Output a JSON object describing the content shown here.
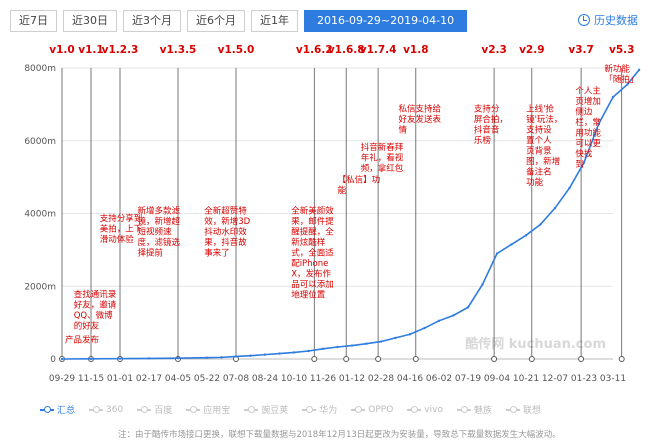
{
  "tabs": [
    "近7日",
    "近30日",
    "近3个月",
    "近6个月",
    "近1年",
    "2016-09-29~2019-04-10"
  ],
  "history_label": "历史数据",
  "legend": [
    "汇总",
    "360",
    "百度",
    "应用宝",
    "豌豆荚",
    "华为",
    "OPPO",
    "vivo",
    "魅族",
    "联想"
  ],
  "note": "注：由于酷传市场接口更换，联想下载量数据与2018年12月13日起更改为安装量，导致总下载量数据发生大幅波动。",
  "watermark": "酷传网 kuchuan.com",
  "colors": {
    "line": "#2e7ce0",
    "version": "#d90000",
    "annotation": "#d90000",
    "grid": "#e6e6e6"
  },
  "chart_data": {
    "type": "line",
    "x_ticks": [
      "09-29",
      "11-15",
      "01-01",
      "02-17",
      "04-05",
      "05-22",
      "07-08",
      "08-24",
      "10-10",
      "11-26",
      "01-12",
      "02-28",
      "04-16",
      "06-02",
      "07-19",
      "09-04",
      "10-21",
      "12-07",
      "01-23",
      "03-11"
    ],
    "y_ticks": [
      "0",
      "2000m",
      "4000m",
      "6000m",
      "8000m"
    ],
    "ylim": [
      0,
      8000
    ],
    "series": [
      {
        "name": "汇总",
        "x": [
          0,
          1,
          2,
          3,
          4,
          5,
          5.5,
          6,
          6.5,
          7,
          7.5,
          8,
          8.5,
          9,
          9.5,
          10,
          10.5,
          11,
          11.5,
          12,
          12.5,
          13,
          13.5,
          14,
          14.5,
          15,
          15.5,
          16,
          16.5,
          17,
          17.5,
          18,
          18.5,
          19,
          19.5,
          19.9
        ],
        "values": [
          0,
          5,
          10,
          15,
          22,
          35,
          45,
          70,
          90,
          120,
          150,
          180,
          220,
          280,
          330,
          370,
          420,
          480,
          580,
          680,
          850,
          1050,
          1200,
          1420,
          2050,
          2900,
          3150,
          3400,
          3700,
          4150,
          4700,
          5400,
          6450,
          7200,
          7550,
          7950
        ]
      }
    ],
    "versions": [
      {
        "label": "v1.0",
        "x": 0
      },
      {
        "label": "v1.1",
        "x": 1
      },
      {
        "label": "v1.2.3",
        "x": 2
      },
      {
        "label": "v1.3.5",
        "x": 4
      },
      {
        "label": "v1.5.0",
        "x": 6
      },
      {
        "label": "v1.6.2",
        "x": 8.7
      },
      {
        "label": "v1.6.8",
        "x": 9.8
      },
      {
        "label": "v1.7.4",
        "x": 10.9
      },
      {
        "label": "v1.8",
        "x": 12.2
      },
      {
        "label": "v2.3",
        "x": 14.9
      },
      {
        "label": "v2.9",
        "x": 16.2
      },
      {
        "label": "v3.7",
        "x": 17.9
      },
      {
        "label": "v5.3",
        "x": 19.3
      }
    ],
    "annotations": [
      {
        "text": "产品发布",
        "x": 0,
        "y": 450,
        "lines": [
          "产品发布"
        ]
      },
      {
        "text": "查找通讯录好友，邀请QQ、微博的好友",
        "x": 0.3,
        "y": 1700,
        "lines": [
          "查找通讯录",
          "好友，邀请",
          "QQ、微博",
          "的好友"
        ]
      },
      {
        "text": "支持分享到美拍，上下滑动体验",
        "x": 1.2,
        "y": 3800,
        "lines": [
          "支持分享到",
          "美拍，上下",
          "滑动体验"
        ]
      },
      {
        "text": "新增多款滤镜，新增超短视频速度，滤镜选择提前",
        "x": 2.5,
        "y": 4000,
        "lines": [
          "新增多款滤",
          "镜，新增超",
          "短视频速",
          "度，滤镜选",
          "择提前"
        ]
      },
      {
        "text": "全新超赞特效，新增3D抖动水印效果，抖音故事来了",
        "x": 4.8,
        "y": 4000,
        "lines": [
          "全新超赞特",
          "效，新增3D",
          "抖动水印效",
          "果，抖音故",
          "事来了"
        ]
      },
      {
        "text": "全新美颜效果，邮件提醒，全新炫酷样式，全面适配iPhone X，发布作品可以添加地理位置",
        "x": 7.8,
        "y": 4000,
        "lines": [
          "全新美颜效",
          "果，邮件提",
          "醒提醒，全",
          "新炫酷样",
          "式，全面适",
          "配iPhone",
          "X，发布作",
          "品可以添加",
          "地理位置"
        ]
      },
      {
        "text": "【私信】功能",
        "x": 9.4,
        "y": 4850,
        "lines": [
          "【私信】功",
          "能"
        ]
      },
      {
        "text": "抖音新春拜年礼，看视频，拿红包",
        "x": 10.2,
        "y": 5750,
        "lines": [
          "抖音新春拜",
          "年礼，看视",
          "频，拿红包"
        ]
      },
      {
        "text": "私信支持给好友发送表情",
        "x": 11.5,
        "y": 6800,
        "lines": [
          "私信支持给",
          "好友发送表",
          "情"
        ]
      },
      {
        "text": "支持分屏合拍，抖音音乐榜",
        "x": 14.1,
        "y": 6800,
        "lines": [
          "支持分",
          "屏合拍，",
          "抖音音",
          "乐榜"
        ]
      },
      {
        "text": "上线'抢镜'玩法，支持设置个人页背景图，新增备注名功能",
        "x": 15.9,
        "y": 6800,
        "lines": [
          "上线'抢",
          "镜'玩法，",
          "支持设",
          "置个人",
          "页背景",
          "图，新增",
          "备注名",
          "功能"
        ]
      },
      {
        "text": "个人主页增加侧边栏，常用功能可以更快找到",
        "x": 17.6,
        "y": 7300,
        "lines": [
          "个人主",
          "页增加",
          "侧边",
          "栏，常",
          "用功能",
          "可以更",
          "快找",
          "到"
        ]
      },
      {
        "text": "新功能「随拍」",
        "x": 18.6,
        "y": 7900,
        "lines": [
          "新功能",
          "「随拍」"
        ]
      }
    ]
  }
}
